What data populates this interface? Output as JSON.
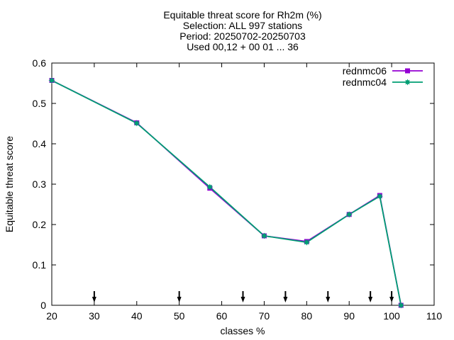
{
  "chart_data": {
    "type": "line",
    "title": [
      "Equitable threat score  for Rh2m (%)",
      "Selection: ALL    997 stations",
      "Period: 20250702-20250703",
      "Used 00,12 + 00 01 ... 36"
    ],
    "xlabel": "classes %",
    "ylabel": "Equitable threat score",
    "xlim": [
      20,
      110
    ],
    "ylim": [
      0,
      0.6
    ],
    "xticks": [
      20,
      30,
      40,
      50,
      60,
      70,
      80,
      90,
      100,
      110
    ],
    "yticks": [
      0,
      0.1,
      0.2,
      0.3,
      0.4,
      0.5,
      0.6
    ],
    "ytick_labels": [
      "0",
      "0.1",
      "0.2",
      "0.3",
      "0.4",
      "0.5",
      "0.6"
    ],
    "legend_position": "top-right",
    "series": [
      {
        "name": "rednmc06",
        "color": "#9400d3",
        "marker": "square",
        "x": [
          20,
          40,
          57.2,
          70,
          80,
          90,
          97.2,
          102.2
        ],
        "y": [
          0.557,
          0.452,
          0.29,
          0.172,
          0.158,
          0.225,
          0.272,
          0.0
        ]
      },
      {
        "name": "rednmc04",
        "color": "#009e73",
        "marker": "star",
        "x": [
          20,
          40,
          57.2,
          70,
          80,
          90,
          97.2,
          102.2
        ],
        "y": [
          0.557,
          0.451,
          0.293,
          0.172,
          0.156,
          0.225,
          0.27,
          0.0
        ]
      }
    ],
    "threshold_arrows_x": [
      30,
      50,
      65,
      75,
      85,
      95,
      100
    ]
  }
}
